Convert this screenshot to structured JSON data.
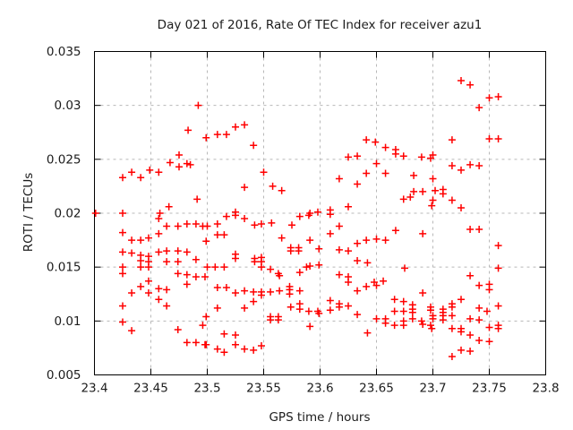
{
  "chart_data": {
    "type": "scatter",
    "title": "Day 021 of 2016, Rate Of TEC Index for receiver azu1",
    "xlabel": "GPS time / hours",
    "ylabel": "ROTI / TECUs",
    "xlim": [
      23.4,
      23.8
    ],
    "ylim": [
      0.005,
      0.035
    ],
    "xtick_values": [
      23.4,
      23.45,
      23.5,
      23.55,
      23.6,
      23.65,
      23.7,
      23.75,
      23.8
    ],
    "xtick_labels": [
      "23.4",
      "23.45",
      "23.5",
      "23.55",
      "23.6",
      "23.65",
      "23.7",
      "23.75",
      "23.8"
    ],
    "ytick_values": [
      0.005,
      0.01,
      0.015,
      0.02,
      0.025,
      0.03,
      0.035
    ],
    "ytick_labels": [
      "0.005",
      "0.01",
      "0.015",
      "0.02",
      "0.025",
      "0.03",
      "0.035"
    ],
    "grid": true,
    "legend": "none",
    "marker": {
      "shape": "plus",
      "size": 9,
      "color": "#ff0000"
    },
    "colors": {
      "marker": "#ff0000",
      "grid": "#b8b8b8",
      "axis": "#000000",
      "text": "#1c1c1c",
      "background": "#ffffff"
    },
    "points": [
      [
        23.401,
        0.02
      ],
      [
        23.425,
        0.0233
      ],
      [
        23.425,
        0.02
      ],
      [
        23.425,
        0.0182
      ],
      [
        23.425,
        0.0164
      ],
      [
        23.425,
        0.015
      ],
      [
        23.425,
        0.0144
      ],
      [
        23.425,
        0.0114
      ],
      [
        23.425,
        0.0099
      ],
      [
        23.433,
        0.0238
      ],
      [
        23.433,
        0.0175
      ],
      [
        23.433,
        0.0163
      ],
      [
        23.433,
        0.0126
      ],
      [
        23.433,
        0.0091
      ],
      [
        23.441,
        0.0233
      ],
      [
        23.441,
        0.0175
      ],
      [
        23.441,
        0.0161
      ],
      [
        23.441,
        0.0156
      ],
      [
        23.441,
        0.015
      ],
      [
        23.441,
        0.0132
      ],
      [
        23.448,
        0.0177
      ],
      [
        23.448,
        0.016
      ],
      [
        23.448,
        0.0155
      ],
      [
        23.448,
        0.015
      ],
      [
        23.448,
        0.0137
      ],
      [
        23.448,
        0.0126
      ],
      [
        23.449,
        0.024
      ],
      [
        23.457,
        0.0238
      ],
      [
        23.457,
        0.0195
      ],
      [
        23.457,
        0.0181
      ],
      [
        23.457,
        0.0164
      ],
      [
        23.457,
        0.013
      ],
      [
        23.457,
        0.012
      ],
      [
        23.458,
        0.02
      ],
      [
        23.464,
        0.0188
      ],
      [
        23.464,
        0.0165
      ],
      [
        23.464,
        0.0155
      ],
      [
        23.464,
        0.0129
      ],
      [
        23.464,
        0.0114
      ],
      [
        23.466,
        0.0206
      ],
      [
        23.467,
        0.0247
      ],
      [
        23.474,
        0.0188
      ],
      [
        23.474,
        0.0165
      ],
      [
        23.474,
        0.0155
      ],
      [
        23.474,
        0.0144
      ],
      [
        23.474,
        0.0092
      ],
      [
        23.475,
        0.0254
      ],
      [
        23.475,
        0.0243
      ],
      [
        23.482,
        0.0246
      ],
      [
        23.482,
        0.019
      ],
      [
        23.482,
        0.0164
      ],
      [
        23.482,
        0.0143
      ],
      [
        23.482,
        0.0134
      ],
      [
        23.482,
        0.008
      ],
      [
        23.483,
        0.0277
      ],
      [
        23.485,
        0.0245
      ],
      [
        23.49,
        0.019
      ],
      [
        23.49,
        0.0157
      ],
      [
        23.49,
        0.0141
      ],
      [
        23.49,
        0.008
      ],
      [
        23.491,
        0.0213
      ],
      [
        23.492,
        0.03
      ],
      [
        23.496,
        0.0188
      ],
      [
        23.496,
        0.0096
      ],
      [
        23.498,
        0.0141
      ],
      [
        23.498,
        0.0078
      ],
      [
        23.499,
        0.027
      ],
      [
        23.499,
        0.0174
      ],
      [
        23.499,
        0.0104
      ],
      [
        23.499,
        0.0078
      ],
      [
        23.5,
        0.0188
      ],
      [
        23.5,
        0.015
      ],
      [
        23.507,
        0.015
      ],
      [
        23.509,
        0.0273
      ],
      [
        23.509,
        0.019
      ],
      [
        23.509,
        0.018
      ],
      [
        23.509,
        0.0131
      ],
      [
        23.509,
        0.0112
      ],
      [
        23.509,
        0.0074
      ],
      [
        23.515,
        0.018
      ],
      [
        23.515,
        0.015
      ],
      [
        23.515,
        0.0088
      ],
      [
        23.515,
        0.0071
      ],
      [
        23.517,
        0.0273
      ],
      [
        23.517,
        0.0197
      ],
      [
        23.517,
        0.0131
      ],
      [
        23.525,
        0.028
      ],
      [
        23.525,
        0.0201
      ],
      [
        23.525,
        0.0198
      ],
      [
        23.525,
        0.0162
      ],
      [
        23.525,
        0.0158
      ],
      [
        23.525,
        0.0126
      ],
      [
        23.525,
        0.0087
      ],
      [
        23.525,
        0.0078
      ],
      [
        23.533,
        0.0282
      ],
      [
        23.533,
        0.0224
      ],
      [
        23.533,
        0.0195
      ],
      [
        23.533,
        0.0128
      ],
      [
        23.533,
        0.0112
      ],
      [
        23.533,
        0.0074
      ],
      [
        23.541,
        0.0263
      ],
      [
        23.541,
        0.0127
      ],
      [
        23.541,
        0.0118
      ],
      [
        23.541,
        0.0073
      ],
      [
        23.542,
        0.0189
      ],
      [
        23.542,
        0.0158
      ],
      [
        23.542,
        0.0155
      ],
      [
        23.548,
        0.019
      ],
      [
        23.548,
        0.0159
      ],
      [
        23.548,
        0.0155
      ],
      [
        23.548,
        0.015
      ],
      [
        23.548,
        0.0127
      ],
      [
        23.548,
        0.0124
      ],
      [
        23.548,
        0.0077
      ],
      [
        23.55,
        0.0238
      ],
      [
        23.556,
        0.0148
      ],
      [
        23.556,
        0.0127
      ],
      [
        23.556,
        0.0104
      ],
      [
        23.556,
        0.0101
      ],
      [
        23.557,
        0.0191
      ],
      [
        23.558,
        0.0225
      ],
      [
        23.563,
        0.0144
      ],
      [
        23.563,
        0.0104
      ],
      [
        23.563,
        0.0101
      ],
      [
        23.564,
        0.0142
      ],
      [
        23.564,
        0.0128
      ],
      [
        23.566,
        0.0221
      ],
      [
        23.566,
        0.0177
      ],
      [
        23.573,
        0.0132
      ],
      [
        23.573,
        0.0129
      ],
      [
        23.573,
        0.0125
      ],
      [
        23.574,
        0.0168
      ],
      [
        23.574,
        0.0165
      ],
      [
        23.574,
        0.0113
      ],
      [
        23.575,
        0.0189
      ],
      [
        23.581,
        0.0168
      ],
      [
        23.581,
        0.0165
      ],
      [
        23.582,
        0.0197
      ],
      [
        23.582,
        0.0145
      ],
      [
        23.582,
        0.0128
      ],
      [
        23.582,
        0.0116
      ],
      [
        23.582,
        0.0111
      ],
      [
        23.588,
        0.015
      ],
      [
        23.59,
        0.0198
      ],
      [
        23.59,
        0.0109
      ],
      [
        23.591,
        0.02
      ],
      [
        23.591,
        0.0175
      ],
      [
        23.591,
        0.0151
      ],
      [
        23.591,
        0.0095
      ],
      [
        23.598,
        0.0201
      ],
      [
        23.598,
        0.0109
      ],
      [
        23.599,
        0.0167
      ],
      [
        23.599,
        0.0152
      ],
      [
        23.599,
        0.0107
      ],
      [
        23.609,
        0.0203
      ],
      [
        23.609,
        0.0199
      ],
      [
        23.609,
        0.0181
      ],
      [
        23.609,
        0.0119
      ],
      [
        23.609,
        0.011
      ],
      [
        23.617,
        0.0232
      ],
      [
        23.617,
        0.0188
      ],
      [
        23.617,
        0.0166
      ],
      [
        23.617,
        0.0143
      ],
      [
        23.617,
        0.0116
      ],
      [
        23.617,
        0.0113
      ],
      [
        23.625,
        0.0252
      ],
      [
        23.625,
        0.0206
      ],
      [
        23.625,
        0.0165
      ],
      [
        23.625,
        0.0141
      ],
      [
        23.625,
        0.0136
      ],
      [
        23.625,
        0.0114
      ],
      [
        23.633,
        0.0253
      ],
      [
        23.633,
        0.0227
      ],
      [
        23.633,
        0.0172
      ],
      [
        23.633,
        0.0156
      ],
      [
        23.633,
        0.0128
      ],
      [
        23.633,
        0.0106
      ],
      [
        23.641,
        0.0268
      ],
      [
        23.641,
        0.0237
      ],
      [
        23.641,
        0.0175
      ],
      [
        23.641,
        0.0132
      ],
      [
        23.642,
        0.0154
      ],
      [
        23.642,
        0.0089
      ],
      [
        23.648,
        0.0136
      ],
      [
        23.649,
        0.0266
      ],
      [
        23.65,
        0.0246
      ],
      [
        23.65,
        0.0176
      ],
      [
        23.65,
        0.0133
      ],
      [
        23.65,
        0.0102
      ],
      [
        23.656,
        0.0137
      ],
      [
        23.658,
        0.0261
      ],
      [
        23.658,
        0.0237
      ],
      [
        23.658,
        0.0175
      ],
      [
        23.658,
        0.0102
      ],
      [
        23.658,
        0.0098
      ],
      [
        23.666,
        0.012
      ],
      [
        23.666,
        0.0109
      ],
      [
        23.666,
        0.0096
      ],
      [
        23.667,
        0.0259
      ],
      [
        23.667,
        0.0255
      ],
      [
        23.667,
        0.0184
      ],
      [
        23.674,
        0.0253
      ],
      [
        23.674,
        0.0213
      ],
      [
        23.674,
        0.0118
      ],
      [
        23.674,
        0.0109
      ],
      [
        23.674,
        0.01
      ],
      [
        23.674,
        0.0096
      ],
      [
        23.675,
        0.0149
      ],
      [
        23.68,
        0.0215
      ],
      [
        23.682,
        0.0115
      ],
      [
        23.682,
        0.0111
      ],
      [
        23.682,
        0.0108
      ],
      [
        23.682,
        0.0102
      ],
      [
        23.683,
        0.0235
      ],
      [
        23.683,
        0.022
      ],
      [
        23.69,
        0.0252
      ],
      [
        23.69,
        0.01
      ],
      [
        23.691,
        0.022
      ],
      [
        23.691,
        0.0181
      ],
      [
        23.691,
        0.0126
      ],
      [
        23.691,
        0.0097
      ],
      [
        23.698,
        0.0251
      ],
      [
        23.698,
        0.0113
      ],
      [
        23.698,
        0.011
      ],
      [
        23.698,
        0.0096
      ],
      [
        23.699,
        0.0207
      ],
      [
        23.699,
        0.0093
      ],
      [
        23.7,
        0.0254
      ],
      [
        23.7,
        0.0232
      ],
      [
        23.7,
        0.0212
      ],
      [
        23.7,
        0.0105
      ],
      [
        23.7,
        0.0102
      ],
      [
        23.702,
        0.0221
      ],
      [
        23.709,
        0.0222
      ],
      [
        23.709,
        0.0218
      ],
      [
        23.709,
        0.0111
      ],
      [
        23.709,
        0.0108
      ],
      [
        23.709,
        0.0105
      ],
      [
        23.709,
        0.0101
      ],
      [
        23.717,
        0.0268
      ],
      [
        23.717,
        0.0244
      ],
      [
        23.717,
        0.0212
      ],
      [
        23.717,
        0.0116
      ],
      [
        23.717,
        0.0113
      ],
      [
        23.717,
        0.0105
      ],
      [
        23.717,
        0.0093
      ],
      [
        23.717,
        0.0067
      ],
      [
        23.725,
        0.0323
      ],
      [
        23.725,
        0.024
      ],
      [
        23.725,
        0.0205
      ],
      [
        23.725,
        0.012
      ],
      [
        23.725,
        0.0093
      ],
      [
        23.725,
        0.009
      ],
      [
        23.725,
        0.0073
      ],
      [
        23.733,
        0.0319
      ],
      [
        23.733,
        0.0245
      ],
      [
        23.733,
        0.0185
      ],
      [
        23.733,
        0.0142
      ],
      [
        23.733,
        0.0102
      ],
      [
        23.733,
        0.0087
      ],
      [
        23.733,
        0.0072
      ],
      [
        23.741,
        0.0298
      ],
      [
        23.741,
        0.0244
      ],
      [
        23.741,
        0.0185
      ],
      [
        23.741,
        0.0133
      ],
      [
        23.741,
        0.0112
      ],
      [
        23.741,
        0.0101
      ],
      [
        23.741,
        0.0082
      ],
      [
        23.748,
        0.0109
      ],
      [
        23.75,
        0.0307
      ],
      [
        23.75,
        0.0269
      ],
      [
        23.75,
        0.0134
      ],
      [
        23.75,
        0.0129
      ],
      [
        23.75,
        0.0094
      ],
      [
        23.75,
        0.0081
      ],
      [
        23.758,
        0.0308
      ],
      [
        23.758,
        0.0269
      ],
      [
        23.758,
        0.017
      ],
      [
        23.758,
        0.0149
      ],
      [
        23.758,
        0.0114
      ],
      [
        23.758,
        0.0096
      ],
      [
        23.758,
        0.0093
      ]
    ]
  }
}
